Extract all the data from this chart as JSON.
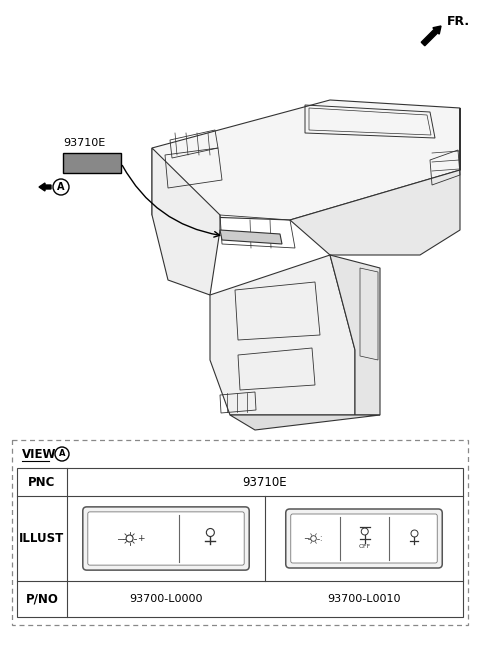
{
  "fr_label": "FR.",
  "part_label": "93710E",
  "view_label": "VIEW",
  "pnc_label": "PNC",
  "pnc_value": "93710E",
  "illust_label": "ILLUST",
  "pno_label": "P/NO",
  "pno1": "93700-L0000",
  "pno2": "93700-L0010",
  "bg_color": "#ffffff",
  "line_color": "#000000",
  "fig_width": 4.8,
  "fig_height": 6.57,
  "dpi": 100
}
